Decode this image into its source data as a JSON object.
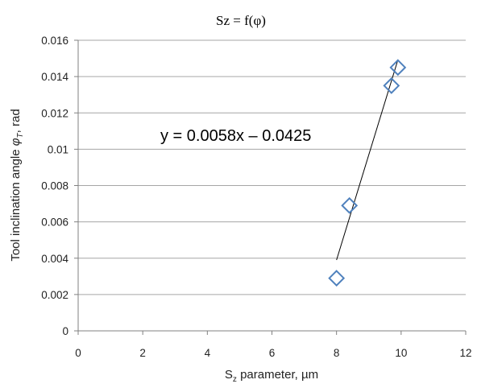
{
  "chart_data": {
    "type": "scatter",
    "title": "Sz = f(φ)",
    "xlabel": {
      "main": "S",
      "sub": "z",
      "rest": " parameter, µm"
    },
    "ylabel": {
      "main": "Tool inclination angle ",
      "sym": "φ",
      "sub": "T",
      "rest": ", rad"
    },
    "xlim": [
      0,
      12
    ],
    "ylim": [
      0,
      0.016
    ],
    "x_ticks": [
      "0",
      "2",
      "4",
      "6",
      "8",
      "10",
      "12"
    ],
    "y_ticks": [
      "0",
      "0.002",
      "0.004",
      "0.006",
      "0.008",
      "0.01",
      "0.012",
      "0.014",
      "0.016"
    ],
    "grid": "horizontal",
    "marker": "diamond-open",
    "series": [
      {
        "points": [
          {
            "x": 8.0,
            "y": 0.0029
          },
          {
            "x": 8.4,
            "y": 0.0069
          },
          {
            "x": 9.7,
            "y": 0.0135
          },
          {
            "x": 9.9,
            "y": 0.0145
          }
        ]
      }
    ],
    "trendline": {
      "equation": "y = 0.0058x – 0.0425",
      "x_range": [
        8.0,
        9.9
      ]
    },
    "colors": {
      "marker": "#4f81bd",
      "trendline": "#000000",
      "grid": "#a6a6a6"
    }
  }
}
